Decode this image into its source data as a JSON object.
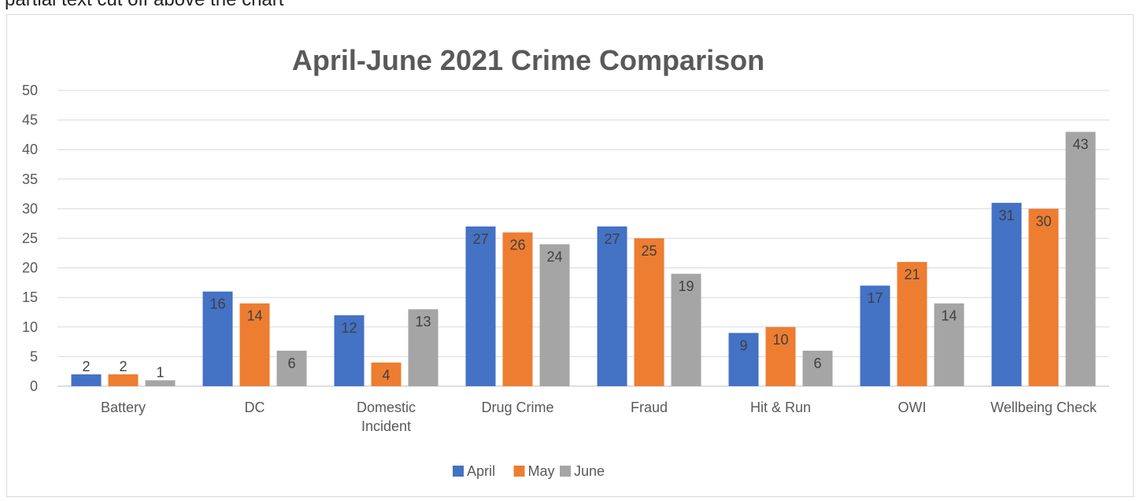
{
  "header_fragment": "partial text cut off above the chart",
  "chart_data": {
    "type": "bar",
    "title": "April-June 2021 Crime Comparison",
    "xlabel": "",
    "ylabel": "",
    "ylim": [
      0,
      50
    ],
    "yticks": [
      0,
      5,
      10,
      15,
      20,
      25,
      30,
      35,
      40,
      45,
      50
    ],
    "grid": true,
    "legend_position": "bottom",
    "categories": [
      [
        "Battery"
      ],
      [
        "DC"
      ],
      [
        "Domestic",
        "Incident"
      ],
      [
        "Drug Crime"
      ],
      [
        "Fraud"
      ],
      [
        "Hit & Run"
      ],
      [
        "OWI"
      ],
      [
        "Wellbeing Check"
      ]
    ],
    "series": [
      {
        "name": "April",
        "color": "#4472c4",
        "values": [
          2,
          16,
          12,
          27,
          27,
          9,
          17,
          31
        ]
      },
      {
        "name": "May",
        "color": "#ed7d31",
        "values": [
          2,
          14,
          4,
          26,
          25,
          10,
          21,
          30
        ]
      },
      {
        "name": "June",
        "color": "#a5a5a5",
        "values": [
          1,
          6,
          13,
          24,
          19,
          6,
          14,
          43
        ]
      }
    ]
  }
}
